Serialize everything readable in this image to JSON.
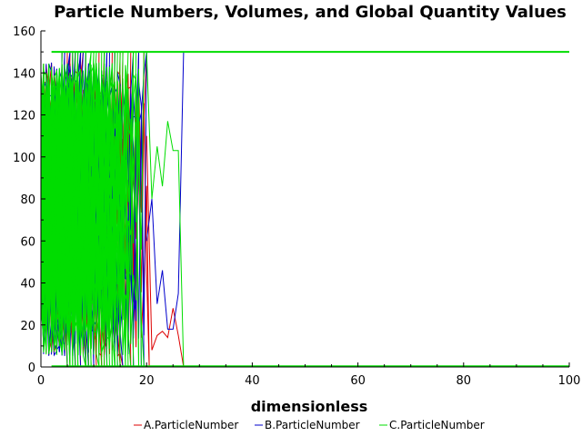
{
  "chart_data": {
    "type": "line",
    "title": "Particle Numbers, Volumes, and Global Quantity Values",
    "xlabel": "dimensionless",
    "ylabel": "",
    "xlim": [
      0,
      100
    ],
    "ylim": [
      0,
      160
    ],
    "xticks": [
      0,
      20,
      40,
      60,
      80,
      100
    ],
    "yticks": [
      0,
      20,
      40,
      60,
      80,
      100,
      120,
      140,
      160
    ],
    "xtick_labels": [
      "0",
      "20",
      "40",
      "60",
      "80",
      "100"
    ],
    "ytick_labels": [
      "0",
      "20",
      "40",
      "60",
      "80",
      "100",
      "120",
      "140",
      "160"
    ],
    "grid": false,
    "legend_position": "bottom",
    "series": [
      {
        "name": "A.ParticleNumber",
        "color": "#dd0000"
      },
      {
        "name": "B.ParticleNumber",
        "color": "#0000cc"
      },
      {
        "name": "C.ParticleNumber",
        "color": "#00dd00"
      }
    ],
    "annotations": [
      {
        "series": "A.ParticleNumber",
        "x": [
          20,
          21,
          22,
          23,
          24,
          25,
          26,
          27
        ],
        "y": [
          110,
          8,
          15,
          17,
          14,
          28,
          15,
          0
        ]
      },
      {
        "series": "B.ParticleNumber",
        "x": [
          20,
          21,
          22,
          23,
          24,
          25,
          26,
          27
        ],
        "y": [
          60,
          80,
          30,
          46,
          18,
          18,
          35,
          150
        ]
      },
      {
        "series": "C.ParticleNumber",
        "x": [
          20,
          21,
          22,
          23,
          24,
          25,
          26,
          27
        ],
        "y": [
          150,
          80,
          105,
          86,
          117,
          103,
          103,
          0
        ]
      }
    ],
    "saturation_level": 150
  }
}
